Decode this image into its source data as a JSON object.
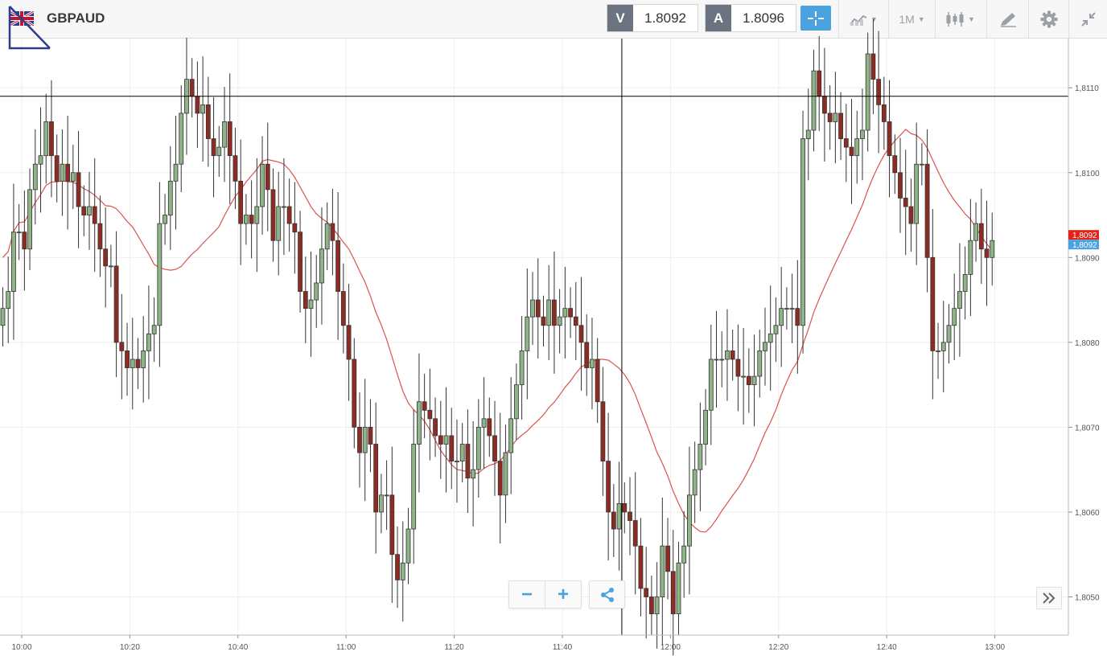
{
  "toolbar": {
    "symbol": "GBPAUD",
    "bid_label": "V",
    "bid_value": "1.8092",
    "ask_label": "A",
    "ask_value": "1.8096",
    "timeframe": "1M",
    "icons": [
      "flag-icon",
      "crosshair-icon",
      "line-chart-icon",
      "candlestick-icon",
      "drawing-tool-icon",
      "gear-icon",
      "collapse-icon"
    ]
  },
  "controls": {
    "zoom_out": "−",
    "zoom_in": "+",
    "share_icon": "share-icon",
    "scroll_icon": "double-chevron-right-icon"
  },
  "colors": {
    "bull": "#8eb487",
    "bear": "#8e2c23",
    "ma": "#d9534f",
    "current_price_red": "#e2231a",
    "current_price_blue": "#4aa3df"
  },
  "chart_data": {
    "type": "candlestick",
    "x_tick_labels": [
      "10:00",
      "10:20",
      "10:40",
      "11:00",
      "11:20",
      "11:40",
      "12:00",
      "12:20",
      "12:40",
      "13:00"
    ],
    "y_tick_labels": [
      "1,8110",
      "1,8100",
      "1,8090",
      "1,8080",
      "1,8070",
      "1,8060",
      "1,8050"
    ],
    "ylim": [
      1.80455,
      1.81158
    ],
    "grid": true,
    "current_price_labels": [
      "1,8092",
      "1,8092"
    ],
    "crosshair": {
      "price": 1.8109,
      "time_minutes_from_10_00": 111
    },
    "candle_interval_minutes": 1,
    "candles_close": [
      1.8084,
      1.8086,
      1.8093,
      1.8093,
      1.8091,
      1.8098,
      1.8101,
      1.8102,
      1.8106,
      1.8102,
      1.8099,
      1.8101,
      1.8099,
      1.81,
      1.8096,
      1.8095,
      1.8096,
      1.8094,
      1.8091,
      1.8089,
      1.8089,
      1.808,
      1.8079,
      1.8077,
      1.8078,
      1.8077,
      1.8079,
      1.8081,
      1.8082,
      1.8094,
      1.8095,
      1.8099,
      1.8101,
      1.8107,
      1.8111,
      1.8109,
      1.8107,
      1.8108,
      1.8104,
      1.8102,
      1.8103,
      1.8106,
      1.8102,
      1.8099,
      1.8094,
      1.8095,
      1.8094,
      1.8096,
      1.8101,
      1.8098,
      1.8092,
      1.8096,
      1.8096,
      1.8094,
      1.8093,
      1.8086,
      1.8084,
      1.8085,
      1.8087,
      1.8091,
      1.8094,
      1.8092,
      1.8086,
      1.8082,
      1.8078,
      1.807,
      1.8067,
      1.807,
      1.8068,
      1.806,
      1.8062,
      1.8062,
      1.8055,
      1.8052,
      1.8054,
      1.8058,
      1.8068,
      1.8073,
      1.8072,
      1.8071,
      1.8069,
      1.8068,
      1.8069,
      1.8066,
      1.8066,
      1.8068,
      1.8064,
      1.8065,
      1.807,
      1.8071,
      1.8069,
      1.8066,
      1.8062,
      1.8067,
      1.8071,
      1.8075,
      1.8079,
      1.8083,
      1.8085,
      1.8083,
      1.8082,
      1.8085,
      1.8082,
      1.8083,
      1.8084,
      1.8083,
      1.8082,
      1.808,
      1.8077,
      1.8078,
      1.8073,
      1.8066,
      1.806,
      1.8058,
      1.8061,
      1.806,
      1.8059,
      1.8056,
      1.8051,
      1.805,
      1.8048,
      1.805,
      1.8056,
      1.8053,
      1.8048,
      1.8054,
      1.8056,
      1.8062,
      1.8065,
      1.8068,
      1.8072,
      1.8078,
      1.8078,
      1.8078,
      1.8079,
      1.8078,
      1.8076,
      1.8076,
      1.8075,
      1.8076,
      1.8079,
      1.808,
      1.8081,
      1.8082,
      1.8084,
      1.8084,
      1.8084,
      1.8082,
      1.8104,
      1.8105,
      1.8112,
      1.8109,
      1.8107,
      1.8106,
      1.8107,
      1.8104,
      1.8103,
      1.8102,
      1.8104,
      1.8105,
      1.8114,
      1.8111,
      1.8108,
      1.8106,
      1.8102,
      1.81,
      1.8097,
      1.8096,
      1.8094,
      1.8101,
      1.8101,
      1.809,
      1.8079,
      1.8079,
      1.808,
      1.8082,
      1.8084,
      1.8086,
      1.8088,
      1.8092,
      1.8094,
      1.8091,
      1.809,
      1.8092
    ]
  }
}
